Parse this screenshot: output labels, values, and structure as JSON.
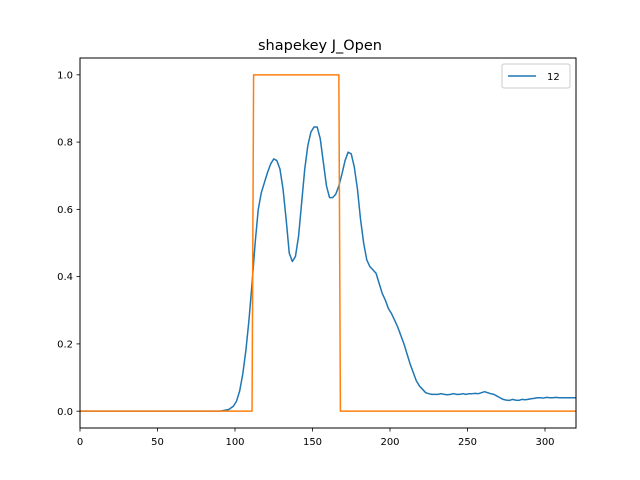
{
  "chart_data": {
    "type": "line",
    "title": "shapekey J_Open",
    "xlabel": "",
    "ylabel": "",
    "xlim": [
      0,
      320
    ],
    "ylim": [
      -0.05,
      1.05
    ],
    "xticks": [
      0,
      50,
      100,
      150,
      200,
      250,
      300
    ],
    "yticks": [
      0.0,
      0.2,
      0.4,
      0.6,
      0.8,
      1.0
    ],
    "xtick_labels": [
      "0",
      "50",
      "100",
      "150",
      "200",
      "250",
      "300"
    ],
    "ytick_labels": [
      "0.0",
      "0.2",
      "0.4",
      "0.6",
      "0.8",
      "1.0"
    ],
    "grid": false,
    "legend": {
      "placement": "top-right",
      "entries": [
        {
          "label": "12",
          "color": "#1f77b4"
        }
      ]
    },
    "series": [
      {
        "name": "12",
        "color": "#1f77b4",
        "x": [
          0,
          90,
          96,
          99,
          101,
          103,
          105,
          107,
          109,
          111,
          113,
          115,
          117,
          119,
          121,
          123,
          125,
          127,
          129,
          131,
          133,
          135,
          137,
          139,
          141,
          143,
          145,
          147,
          149,
          151,
          153,
          155,
          157,
          159,
          161,
          163,
          165,
          167,
          169,
          171,
          173,
          175,
          177,
          179,
          181,
          183,
          185,
          187,
          189,
          191,
          193,
          195,
          197,
          199,
          201,
          203,
          205,
          207,
          209,
          211,
          213,
          215,
          217,
          219,
          221,
          223,
          225,
          227,
          229,
          231,
          233,
          235,
          237,
          239,
          241,
          243,
          245,
          247,
          249,
          251,
          253,
          255,
          257,
          259,
          261,
          263,
          265,
          267,
          269,
          271,
          273,
          275,
          277,
          279,
          281,
          283,
          285,
          287,
          289,
          291,
          293,
          295,
          297,
          299,
          301,
          303,
          305,
          307,
          309,
          311,
          313,
          315,
          317,
          320
        ],
        "y": [
          0.0,
          0.0,
          0.005,
          0.015,
          0.03,
          0.06,
          0.11,
          0.18,
          0.27,
          0.38,
          0.5,
          0.6,
          0.65,
          0.68,
          0.71,
          0.735,
          0.75,
          0.745,
          0.72,
          0.66,
          0.57,
          0.47,
          0.445,
          0.46,
          0.52,
          0.62,
          0.72,
          0.79,
          0.83,
          0.845,
          0.845,
          0.81,
          0.74,
          0.67,
          0.635,
          0.635,
          0.645,
          0.67,
          0.705,
          0.745,
          0.77,
          0.765,
          0.725,
          0.66,
          0.57,
          0.5,
          0.45,
          0.43,
          0.42,
          0.41,
          0.38,
          0.35,
          0.33,
          0.305,
          0.29,
          0.27,
          0.25,
          0.225,
          0.2,
          0.17,
          0.14,
          0.115,
          0.09,
          0.075,
          0.065,
          0.055,
          0.052,
          0.05,
          0.05,
          0.05,
          0.052,
          0.05,
          0.049,
          0.05,
          0.052,
          0.05,
          0.05,
          0.052,
          0.05,
          0.052,
          0.052,
          0.053,
          0.052,
          0.055,
          0.058,
          0.055,
          0.052,
          0.05,
          0.045,
          0.04,
          0.035,
          0.033,
          0.032,
          0.035,
          0.033,
          0.032,
          0.035,
          0.034,
          0.035,
          0.037,
          0.038,
          0.04,
          0.04,
          0.039,
          0.041,
          0.04,
          0.04,
          0.041,
          0.04,
          0.04,
          0.04,
          0.04,
          0.04,
          0.04
        ]
      },
      {
        "color": "#ff7f0e",
        "x": [
          0,
          111,
          112,
          167,
          168,
          320
        ],
        "y": [
          0,
          0,
          1,
          1,
          0,
          0
        ]
      }
    ]
  }
}
